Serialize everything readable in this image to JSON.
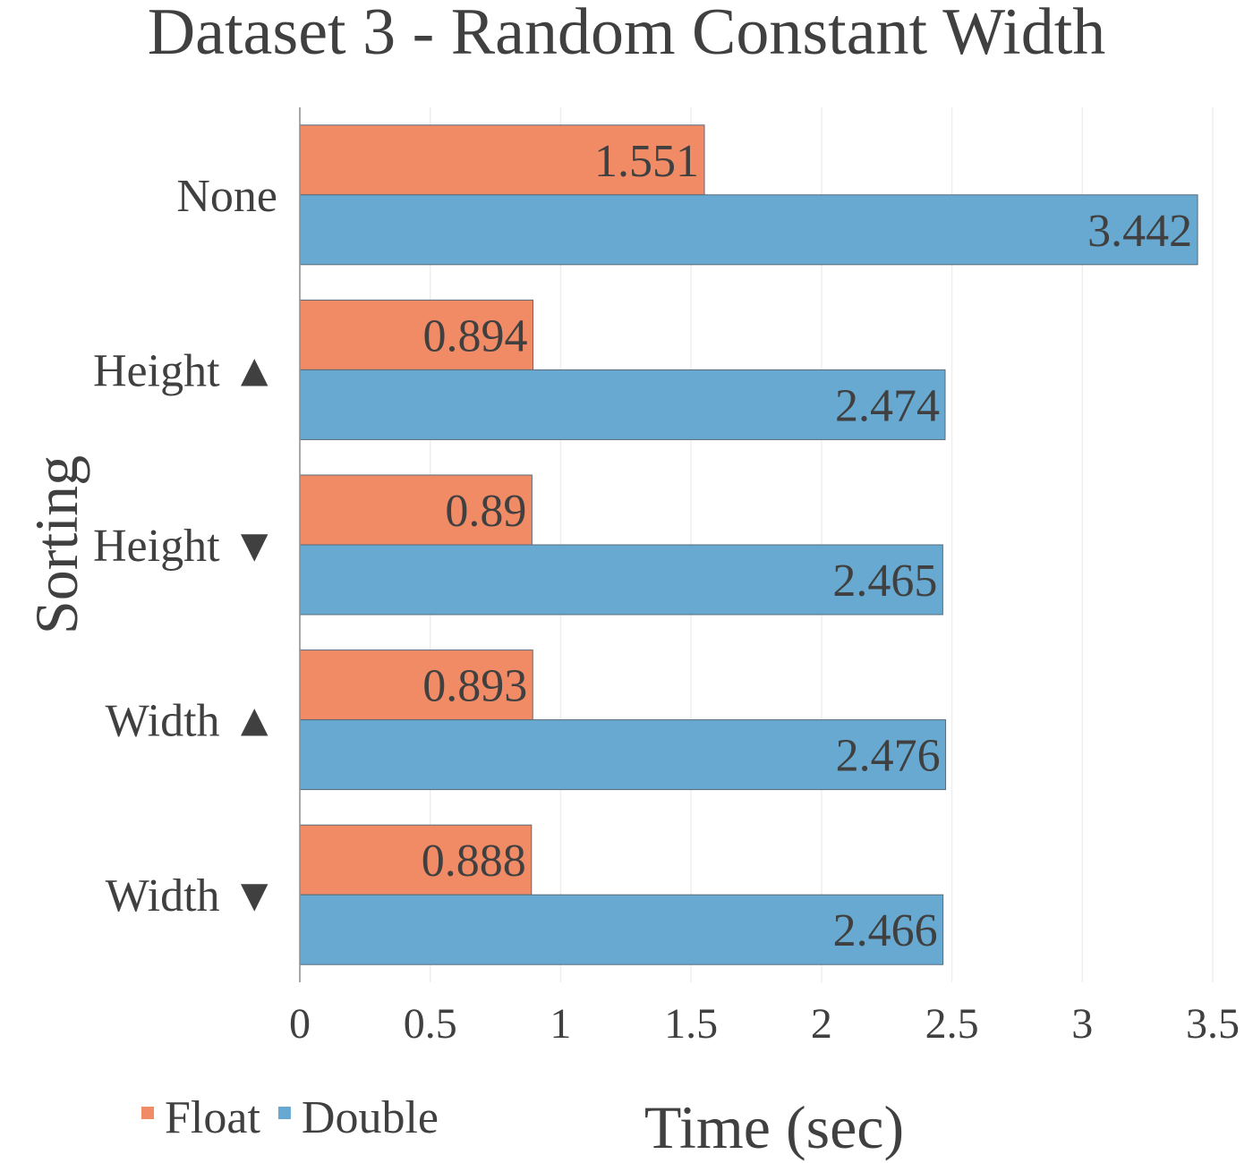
{
  "chart_data": {
    "type": "bar",
    "orientation": "horizontal",
    "title": "Dataset 3 - Random Constant Width",
    "xlabel": "Time (sec)",
    "ylabel": "Sorting",
    "categories": [
      "None",
      "Height ▲",
      "Height ▼",
      "Width ▲",
      "Width ▼"
    ],
    "series": [
      {
        "name": "Float",
        "color": "#F08B66",
        "values": [
          1.551,
          0.894,
          0.89,
          0.893,
          0.888
        ],
        "labels": [
          "1.551",
          "0.894",
          "0.89",
          "0.893",
          "0.888"
        ]
      },
      {
        "name": "Double",
        "color": "#67A9D0",
        "values": [
          3.442,
          2.474,
          2.465,
          2.476,
          2.466
        ],
        "labels": [
          "3.442",
          "2.474",
          "2.465",
          "2.476",
          "2.466"
        ]
      }
    ],
    "xlim": [
      0,
      3.5
    ],
    "xticks": [
      "0",
      "0.5",
      "1",
      "1.5",
      "2",
      "2.5",
      "3",
      "3.5"
    ],
    "grid": "vertical",
    "legend_position": "bottom-left"
  }
}
